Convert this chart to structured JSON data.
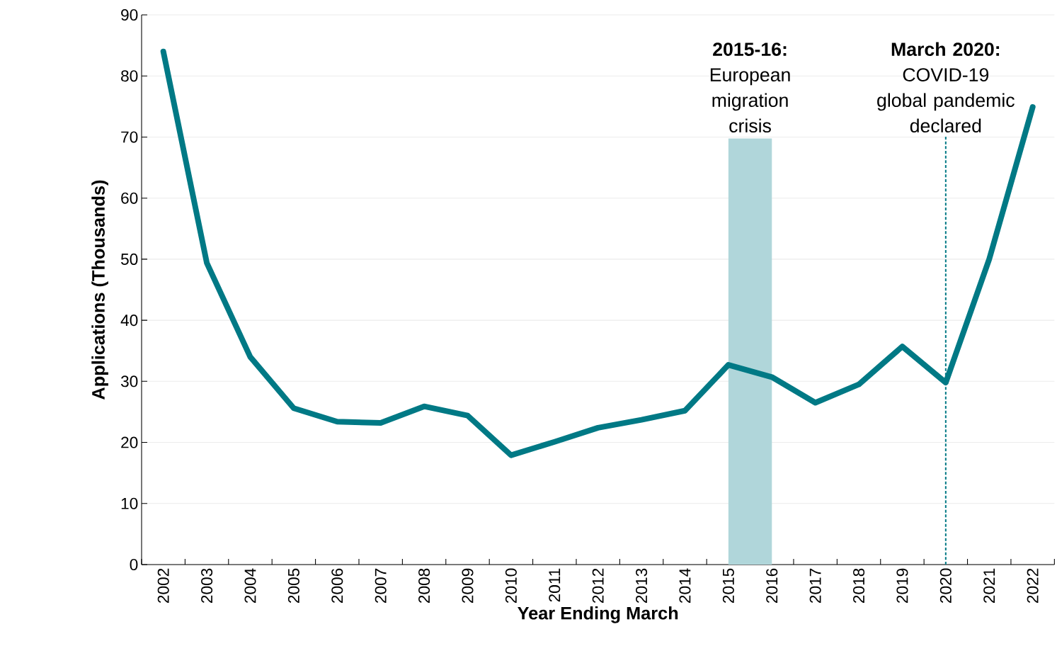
{
  "chart_data": {
    "type": "line",
    "xlabel": "Year Ending March",
    "ylabel": "Applications (Thousands)",
    "categories": [
      "2002",
      "2003",
      "2004",
      "2005",
      "2006",
      "2007",
      "2008",
      "2009",
      "2010",
      "2011",
      "2012",
      "2013",
      "2014",
      "2015",
      "2016",
      "2017",
      "2018",
      "2019",
      "2020",
      "2021",
      "2022"
    ],
    "series": [
      {
        "color": "#007985",
        "values": [
          84,
          49.4,
          34,
          25.6,
          23.4,
          23.2,
          25.9,
          24.4,
          17.9,
          20.1,
          22.4,
          23.7,
          25.2,
          32.7,
          30.7,
          26.5,
          29.5,
          35.7,
          29.8,
          50,
          74.9
        ]
      }
    ],
    "ylim": [
      0,
      90
    ],
    "yticks": [
      0,
      10,
      20,
      30,
      40,
      50,
      60,
      70,
      80,
      90
    ],
    "grid": "y",
    "marker": "none",
    "line_style": "solid",
    "bands": [
      {
        "axis": "x",
        "from": "2015",
        "to": "2016",
        "label": "**2015-16:** European migration crisis",
        "color": "#b0d6da"
      }
    ],
    "ref_lines": [
      {
        "axis": "x",
        "value": "2020",
        "label": "**March 2020:** COVID-19 global pandemic declared",
        "color": "#007985",
        "line_style": "dashed"
      }
    ]
  }
}
